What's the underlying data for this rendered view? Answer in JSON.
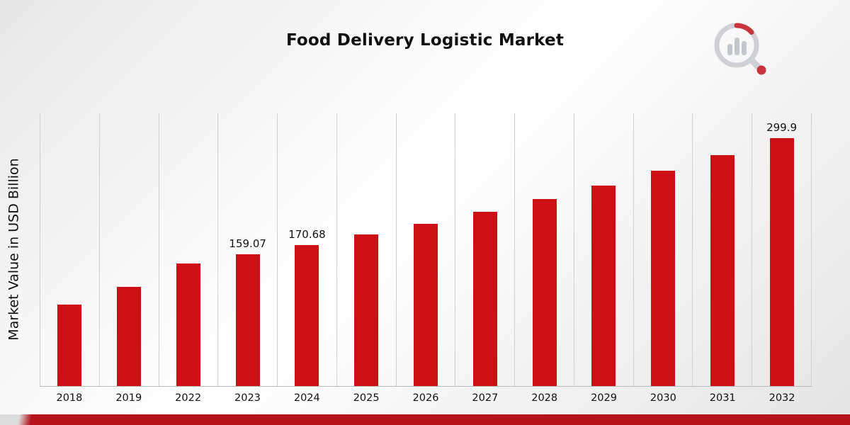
{
  "title": "Food Delivery Logistic Market",
  "y_axis_label": "Market Value in USD Billion",
  "colors": {
    "bar": "#cc1016",
    "ribbon": "#b5121a",
    "grid": "#cfcfcf",
    "text": "#111111"
  },
  "chart_data": {
    "type": "bar",
    "title": "Food Delivery Logistic Market",
    "ylabel": "Market Value in USD Billion",
    "xlabel": "",
    "categories": [
      "2018",
      "2019",
      "2022",
      "2023",
      "2024",
      "2025",
      "2026",
      "2027",
      "2028",
      "2029",
      "2030",
      "2031",
      "2032"
    ],
    "values": [
      99.0,
      120.0,
      148.2,
      159.07,
      170.68,
      183.2,
      196.6,
      211.0,
      226.4,
      243.0,
      260.7,
      279.8,
      299.9
    ],
    "data_labels": {
      "2023": "159.07",
      "2024": "170.68",
      "2032": "299.9"
    },
    "ylim": [
      0,
      330
    ],
    "grid": "vertical-only",
    "legend": "none",
    "bar_color": "#cc1016"
  }
}
